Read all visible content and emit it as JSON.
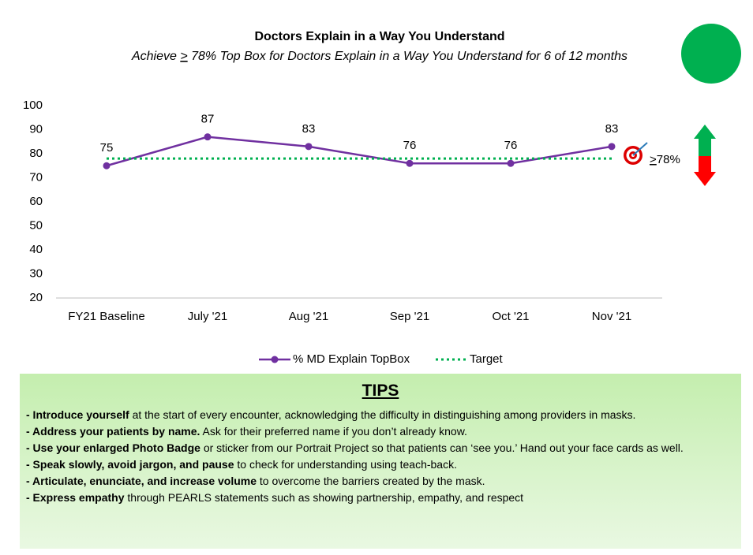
{
  "chart_data": {
    "type": "line",
    "title": "Doctors Explain in a Way You Understand",
    "subtitle": [
      "Achieve ",
      ">",
      " 78% Top Box for Doctors Explain in a Way You Understand for 6 of 12 months"
    ],
    "categories": [
      "FY21 Baseline",
      "July '21",
      "Aug '21",
      "Sep '21",
      "Oct '21",
      "Nov '21"
    ],
    "series": [
      {
        "name": "% MD Explain TopBox",
        "color": "#7030a0",
        "style": "solid",
        "markers": true,
        "data_labels": true,
        "values": [
          75,
          87,
          83,
          76,
          76,
          83
        ]
      },
      {
        "name": "Target",
        "color": "#00b050",
        "style": "dotted",
        "markers": false,
        "data_labels": false,
        "values": [
          78,
          78,
          78,
          78,
          78,
          78
        ]
      }
    ],
    "ylim": [
      20,
      100
    ],
    "yticks": [
      20,
      30,
      40,
      50,
      60,
      70,
      80,
      90,
      100
    ],
    "grid": false,
    "annotation": [
      ">",
      "78%"
    ]
  },
  "tips": {
    "title": "TIPS",
    "items": [
      {
        "bold": "- Introduce yourself",
        "text": " at the start of every encounter, acknowledging the difficulty in distinguishing among providers in masks."
      },
      {
        "bold": "- Address your patients by name.",
        "text": " Ask for their preferred name if you don’t already know."
      },
      {
        "bold": "- Use your enlarged Photo Badge",
        "text": " or sticker from our Portrait Project so that patients can ‘see you.’ Hand out your face cards as well."
      },
      {
        "bold": "- Speak slowly, avoid jargon, and pause",
        "text": " to check for understanding using teach-back."
      },
      {
        "bold": "- Articulate, enunciate, and increase volume",
        "text": " to overcome the barriers created by the mask."
      },
      {
        "bold": "- Express empathy",
        "text": " through PEARLS statements such as showing partnership, empathy, and respect"
      }
    ]
  }
}
